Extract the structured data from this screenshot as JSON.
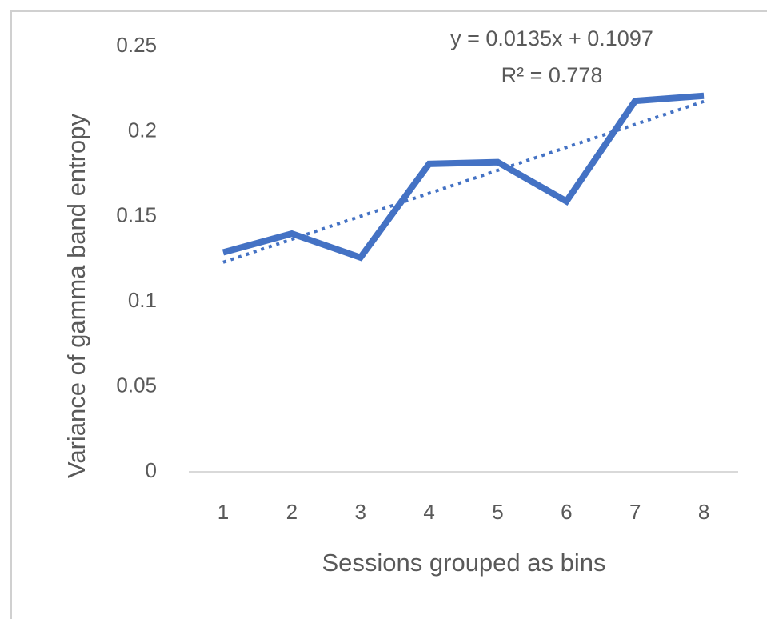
{
  "chart_data": {
    "type": "line",
    "x_label": "Sessions grouped as bins",
    "y_label": "Variance of gamma band entropy",
    "x": [
      1,
      2,
      3,
      4,
      5,
      6,
      7,
      8
    ],
    "xlim": [
      0.5,
      8.5
    ],
    "xticks": [
      1,
      2,
      3,
      4,
      5,
      6,
      7,
      8
    ],
    "series": [
      {
        "color": "#4472c4",
        "values": [
          0.129,
          0.14,
          0.126,
          0.181,
          0.182,
          0.159,
          0.218,
          0.221
        ]
      }
    ],
    "ylim": [
      0,
      0.25
    ],
    "yticks": [
      0,
      0.05,
      0.1,
      0.15,
      0.2,
      0.25
    ],
    "grid": false,
    "trendline": {
      "slope": 0.0135,
      "intercept": 0.1097,
      "equation": "y = 0.0135x + 0.1097",
      "r_squared": "R² = 0.778",
      "color": "#4472c4"
    }
  }
}
